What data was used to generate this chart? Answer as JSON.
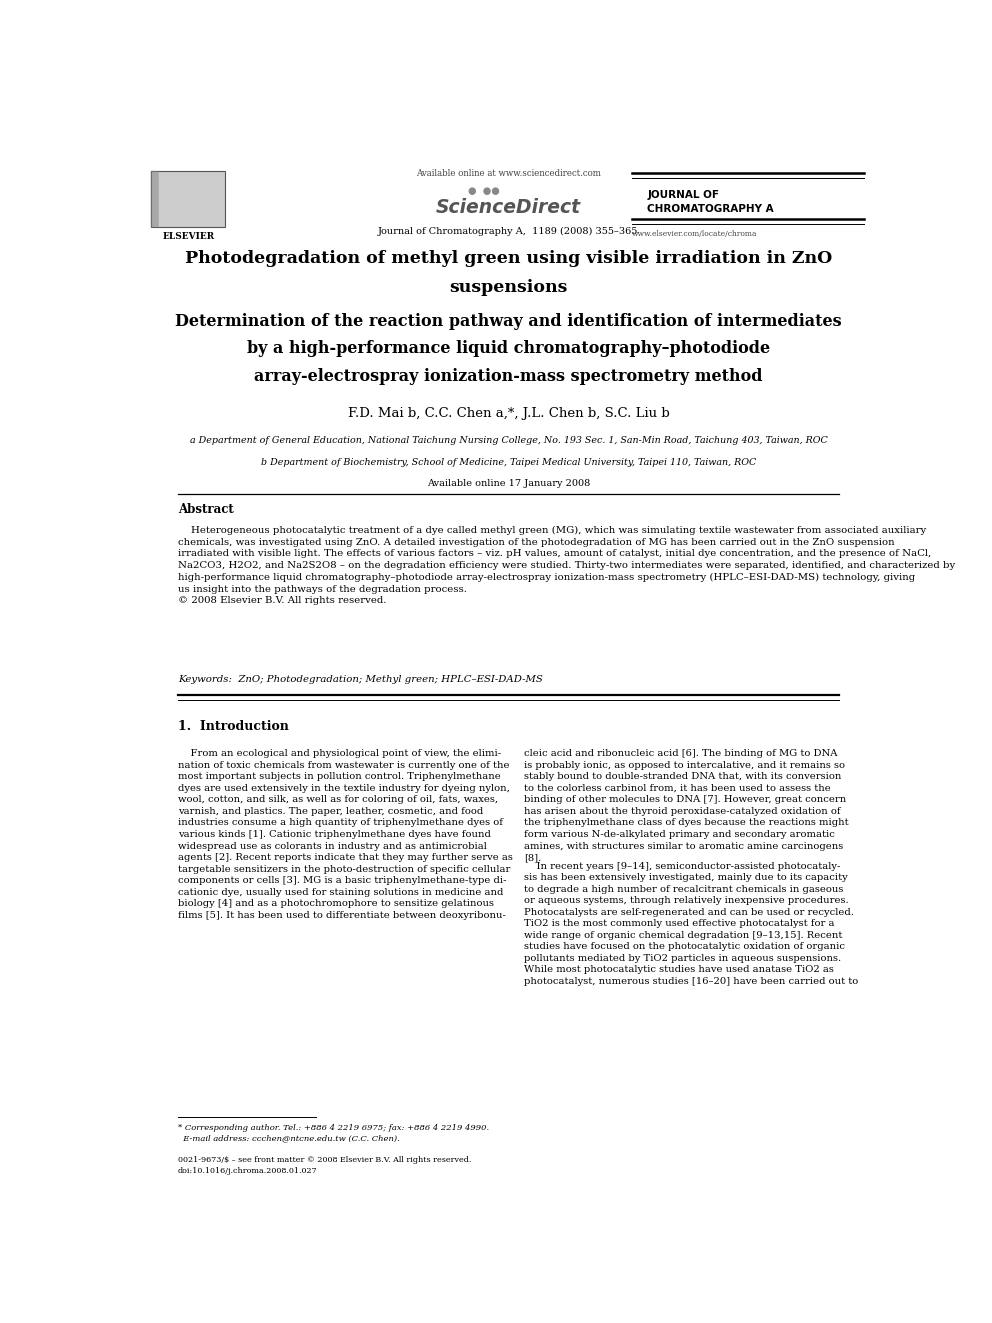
{
  "page_width": 9.92,
  "page_height": 13.23,
  "background_color": "#ffffff",
  "header": {
    "available_online": "Available online at www.sciencedirect.com",
    "sciencedirect": "ScienceDirect",
    "journal_name": "Journal of Chromatography A,  1189 (2008) 355–365",
    "journal_right_top": "JOURNAL OF\nCHROMATOGRAPHY A",
    "website": "www.elsevier.com/locate/chroma"
  },
  "title_line1": "Photodegradation of methyl green using visible irradiation in ZnO",
  "title_line2": "suspensions",
  "title_line3": "Determination of the reaction pathway and identification of intermediates",
  "title_line4": "by a high-performance liquid chromatography–photodiode",
  "title_line5": "array-electrospray ionization-mass spectrometry method",
  "authors": "F.D. Mai b, C.C. Chen a,*, J.L. Chen b, S.C. Liu b",
  "affiliation_a": "a Department of General Education, National Taichung Nursing College, No. 193 Sec. 1, San-Min Road, Taichung 403, Taiwan, ROC",
  "affiliation_b": "b Department of Biochemistry, School of Medicine, Taipei Medical University, Taipei 110, Taiwan, ROC",
  "available_online_date": "Available online 17 January 2008",
  "abstract_title": "Abstract",
  "abstract_text": "    Heterogeneous photocatalytic treatment of a dye called methyl green (MG), which was simulating textile wastewater from associated auxiliary\nchemicals, was investigated using ZnO. A detailed investigation of the photodegradation of MG has been carried out in the ZnO suspension\nirradiated with visible light. The effects of various factors – viz. pH values, amount of catalyst, initial dye concentration, and the presence of NaCl,\nNa2CO3, H2O2, and Na2S2O8 – on the degradation efficiency were studied. Thirty-two intermediates were separated, identified, and characterized by\nhigh-performance liquid chromatography–photodiode array-electrospray ionization-mass spectrometry (HPLC–ESI-DAD-MS) technology, giving\nus insight into the pathways of the degradation process.\n© 2008 Elsevier B.V. All rights reserved.",
  "keywords": "Keywords:  ZnO; Photodegradation; Methyl green; HPLC–ESI-DAD-MS",
  "section1_title": "1.  Introduction",
  "intro_col1_para1": "    From an ecological and physiological point of view, the elimi-\nnation of toxic chemicals from wastewater is currently one of the\nmost important subjects in pollution control. Triphenylmethane\ndyes are used extensively in the textile industry for dyeing nylon,\nwool, cotton, and silk, as well as for coloring of oil, fats, waxes,\nvarnish, and plastics. The paper, leather, cosmetic, and food\nindustries consume a high quantity of triphenylmethane dyes of\nvarious kinds [1]. Cationic triphenylmethane dyes have found\nwidespread use as colorants in industry and as antimicrobial\nagents [2]. Recent reports indicate that they may further serve as\ntargetable sensitizers in the photo-destruction of specific cellular\ncomponents or cells [3]. MG is a basic triphenylmethane-type di-\ncationic dye, usually used for staining solutions in medicine and\nbiology [4] and as a photochromophore to sensitize gelatinous\nfilms [5]. It has been used to differentiate between deoxyribonu-",
  "intro_col2_para1": "cleic acid and ribonucleic acid [6]. The binding of MG to DNA\nis probably ionic, as opposed to intercalative, and it remains so\nstably bound to double-stranded DNA that, with its conversion\nto the colorless carbinol from, it has been used to assess the\nbinding of other molecules to DNA [7]. However, great concern\nhas arisen about the thyroid peroxidase-catalyzed oxidation of\nthe triphenylmethane class of dyes because the reactions might\nform various N-de-alkylated primary and secondary aromatic\namines, with structures similar to aromatic amine carcinogens\n[8].",
  "intro_col2_para2": "    In recent years [9–14], semiconductor-assisted photocataly-\nsis has been extensively investigated, mainly due to its capacity\nto degrade a high number of recalcitrant chemicals in gaseous\nor aqueous systems, through relatively inexpensive procedures.\nPhotocatalysts are self-regenerated and can be used or recycled.\nTiO2 is the most commonly used effective photocatalyst for a\nwide range of organic chemical degradation [9–13,15]. Recent\nstudies have focused on the photocatalytic oxidation of organic\npollutants mediated by TiO2 particles in aqueous suspensions.\nWhile most photocatalytic studies have used anatase TiO2 as\nphotocatalyst, numerous studies [16–20] have been carried out to",
  "footnote_star": "* Corresponding author. Tel.: +886 4 2219 6975; fax: +886 4 2219 4990.\n  E-mail address: ccchen@ntcne.edu.tw (C.C. Chen).",
  "bottom_issn": "0021-9673/$ – see front matter © 2008 Elsevier B.V. All rights reserved.\ndoi:10.1016/j.chroma.2008.01.027"
}
